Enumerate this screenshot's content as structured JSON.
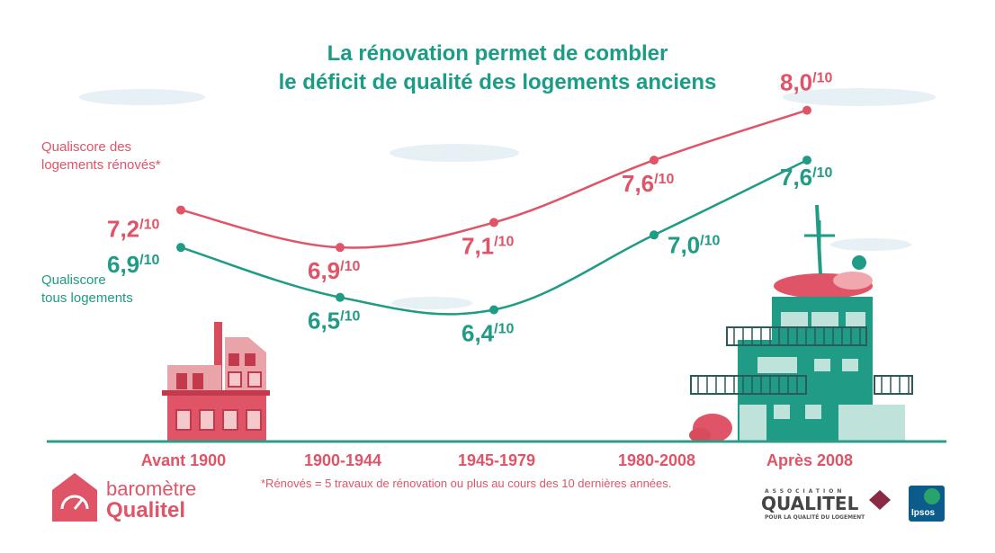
{
  "title_line1": "La rénovation permet de combler",
  "title_line2": "le déficit de qualité des logements anciens",
  "colors": {
    "renovated": "#e05468",
    "all": "#1f9b86",
    "title": "#1a9c86",
    "baseline": "#2a9d8a"
  },
  "chart_data": {
    "type": "line",
    "categories": [
      "Avant 1900",
      "1900-1944",
      "1945-1979",
      "1980-2008",
      "Après 2008"
    ],
    "ylim": [
      6.0,
      8.3
    ],
    "value_suffix": "/10",
    "series": [
      {
        "name": "Qualiscore des logements rénovés*",
        "name_line1": "Qualiscore des",
        "name_line2": "logements rénovés*",
        "values": [
          7.2,
          6.9,
          7.1,
          7.6,
          8.0
        ],
        "labels": [
          "7,2",
          "6,9",
          "7,1",
          "7,6",
          "8,0"
        ]
      },
      {
        "name": "Qualiscore tous logements",
        "name_line1": "Qualiscore",
        "name_line2": "tous logements",
        "values": [
          6.9,
          6.5,
          6.4,
          7.0,
          7.6
        ],
        "labels": [
          "6,9",
          "6,5",
          "6,4",
          "7,0",
          "7,6"
        ]
      }
    ]
  },
  "footnote": "*Rénovés = 5 travaux de rénovation ou plus au cours des 10 dernières années.",
  "brand": {
    "line1": "baromètre",
    "line2": "Qualitel"
  },
  "association": {
    "small": "ASSOCIATION",
    "name": "QUALITEL",
    "tagline": "POUR LA QUALITÉ DU LOGEMENT"
  },
  "ipsos": "Ipsos"
}
